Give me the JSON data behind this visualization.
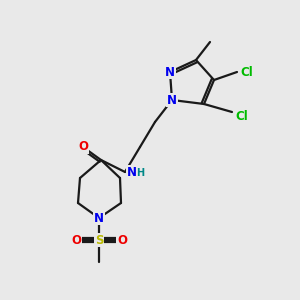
{
  "bg_color": "#e9e9e9",
  "bond_color": "#1a1a1a",
  "bond_width": 1.6,
  "atom_colors": {
    "N": "#0000ee",
    "O": "#ee0000",
    "S": "#bbbb00",
    "Cl": "#00bb00",
    "C": "#1a1a1a",
    "H": "#008888"
  },
  "font_size_atom": 8.5,
  "font_size_small": 7.0
}
